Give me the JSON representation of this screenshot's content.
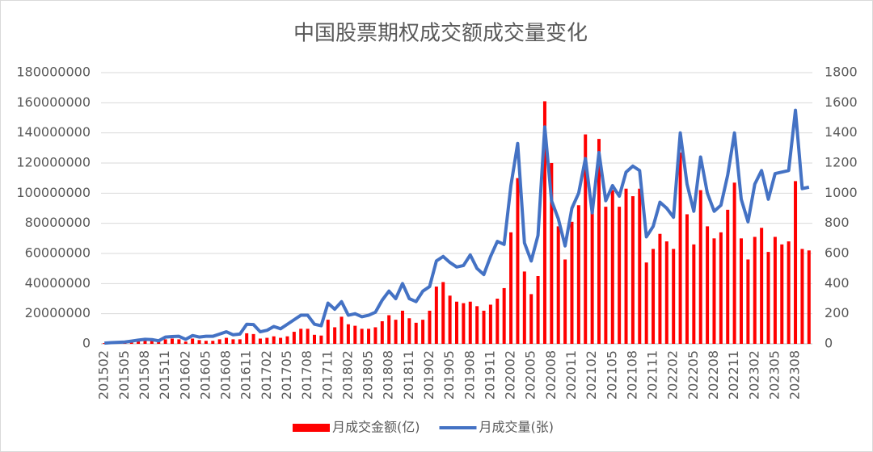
{
  "chart_data": {
    "type": "bar_line",
    "title": "中国股票期权成交额成交量变化",
    "categories": [
      "201502",
      null,
      null,
      "201505",
      null,
      null,
      "201508",
      null,
      null,
      "201511",
      null,
      null,
      "201602",
      null,
      null,
      "201605",
      null,
      null,
      "201608",
      null,
      null,
      "201611",
      null,
      null,
      "201702",
      null,
      null,
      "201705",
      null,
      null,
      "201708",
      null,
      null,
      "201711",
      null,
      null,
      "201802",
      null,
      null,
      "201805",
      null,
      null,
      "201808",
      null,
      null,
      "201811",
      null,
      null,
      "201902",
      null,
      null,
      "201905",
      null,
      null,
      "201908",
      null,
      null,
      "201911",
      null,
      null,
      "202002",
      null,
      null,
      "202005",
      null,
      null,
      "202008",
      null,
      null,
      "202011",
      null,
      null,
      "202102",
      null,
      null,
      "202105",
      null,
      null,
      "202108",
      null,
      null,
      "202111",
      null,
      null,
      "202202",
      null,
      null,
      "202205",
      null,
      null,
      "202208",
      null,
      null,
      "202211",
      null,
      null,
      "202302",
      null,
      null,
      "202305",
      null,
      null,
      "202308",
      null,
      null
    ],
    "series": [
      {
        "name": "月成交金额(亿)",
        "type": "bar",
        "color": "#ff0000",
        "values": [
          500000,
          1000000,
          1000000,
          1500000,
          2000000,
          2000000,
          2000000,
          2000000,
          1500000,
          3000000,
          3500000,
          3000000,
          1500000,
          3500000,
          2500000,
          2000000,
          2000000,
          3000000,
          4000000,
          3000000,
          3000000,
          7000000,
          6500000,
          3500000,
          4000000,
          5000000,
          4000000,
          5000000,
          8000000,
          10000000,
          10000000,
          6000000,
          5500000,
          16000000,
          11000000,
          18000000,
          13000000,
          12000000,
          10000000,
          10000000,
          11000000,
          15000000,
          19000000,
          16000000,
          22000000,
          17000000,
          14000000,
          16000000,
          22000000,
          38000000,
          41000000,
          32000000,
          28000000,
          27000000,
          28000000,
          25000000,
          22000000,
          26000000,
          30000000,
          37000000,
          74000000,
          110000000,
          48000000,
          33000000,
          45000000,
          161000000,
          120000000,
          78000000,
          56000000,
          81000000,
          92000000,
          139000000,
          90000000,
          136000000,
          91000000,
          102000000,
          91000000,
          103000000,
          98000000,
          103000000,
          54000000,
          63000000,
          73000000,
          68000000,
          63000000,
          127000000,
          86000000,
          66000000,
          102000000,
          78000000,
          70000000,
          74000000,
          89000000,
          107000000,
          70000000,
          56000000,
          71000000,
          77000000,
          61000000,
          71000000,
          66000000,
          68000000,
          108000000,
          63000000,
          62000000
        ]
      },
      {
        "name": "月成交量(张)",
        "type": "line",
        "axis": "y2",
        "color": "#4472c4",
        "values": [
          5,
          8,
          10,
          12,
          18,
          25,
          30,
          28,
          20,
          45,
          48,
          50,
          30,
          55,
          45,
          50,
          50,
          65,
          80,
          60,
          65,
          130,
          128,
          80,
          90,
          115,
          100,
          130,
          160,
          190,
          190,
          130,
          120,
          270,
          230,
          280,
          190,
          200,
          180,
          190,
          210,
          290,
          350,
          300,
          400,
          300,
          280,
          350,
          380,
          550,
          580,
          540,
          510,
          520,
          590,
          500,
          460,
          580,
          680,
          660,
          1050,
          1330,
          670,
          550,
          720,
          1440,
          950,
          830,
          650,
          900,
          1000,
          1230,
          870,
          1270,
          950,
          1050,
          980,
          1140,
          1180,
          1150,
          710,
          780,
          940,
          900,
          840,
          1400,
          1060,
          880,
          1240,
          1000,
          880,
          920,
          1120,
          1400,
          960,
          810,
          1060,
          1150,
          960,
          1130,
          1140,
          1150,
          1550,
          1030,
          1040
        ]
      }
    ],
    "ylim": [
      0,
      180000000
    ],
    "yticks": [
      0,
      20000000,
      40000000,
      60000000,
      80000000,
      100000000,
      120000000,
      140000000,
      160000000,
      180000000
    ],
    "y2lim": [
      0,
      1800
    ],
    "y2ticks": [
      0,
      200,
      400,
      600,
      800,
      1000,
      1200,
      1400,
      1600,
      1800
    ],
    "grid": true,
    "legend": "bottom"
  }
}
